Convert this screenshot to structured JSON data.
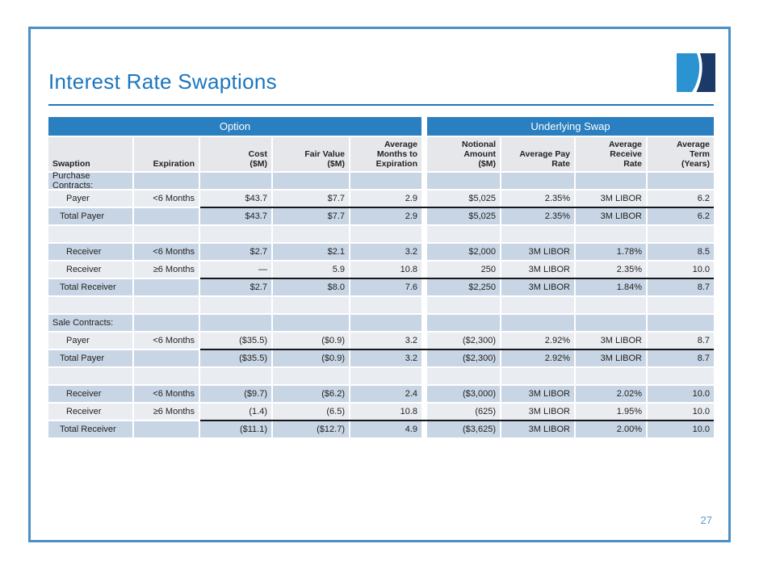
{
  "slide": {
    "title": "Interest Rate Swaptions",
    "page_number": "27"
  },
  "colors": {
    "title_blue": "#1b76bf",
    "band_blue": "#2a7fc0",
    "frame_blue": "#4a90c6",
    "row_dark": "#c8d5e4",
    "row_light": "#e9edf2",
    "header_gray": "#e5e7eb",
    "page_number_blue": "#5d9bd3",
    "logo_light_blue": "#2b93d1",
    "logo_navy": "#1c3a68"
  },
  "table": {
    "groups": [
      {
        "label": "Option"
      },
      {
        "label": "Underlying Swap"
      }
    ],
    "columns": [
      {
        "label": "Swaption"
      },
      {
        "label": "Expiration"
      },
      {
        "label": "Cost\n($M)"
      },
      {
        "label": "Fair Value\n($M)"
      },
      {
        "label": "Average\nMonths to\nExpiration"
      },
      {
        "label": "Notional\nAmount\n($M)"
      },
      {
        "label": "Average Pay\nRate"
      },
      {
        "label": "Average\nReceive\nRate"
      },
      {
        "label": "Average\nTerm\n(Years)"
      }
    ],
    "rows": [
      {
        "type": "section",
        "cells": [
          "Purchase Contracts:",
          "",
          "",
          "",
          "",
          "",
          "",
          "",
          ""
        ]
      },
      {
        "type": "data",
        "cells": [
          "Payer",
          "<6 Months",
          "$43.7",
          "$7.7",
          "2.9",
          "$5,025",
          "2.35%",
          "3M LIBOR",
          "6.2"
        ]
      },
      {
        "type": "total",
        "cells": [
          "Total Payer",
          "",
          "$43.7",
          "$7.7",
          "2.9",
          "$5,025",
          "2.35%",
          "3M LIBOR",
          "6.2"
        ]
      },
      {
        "type": "empty",
        "cells": [
          "",
          "",
          "",
          "",
          "",
          "",
          "",
          "",
          ""
        ]
      },
      {
        "type": "data",
        "cells": [
          "Receiver",
          "<6 Months",
          "$2.7",
          "$2.1",
          "3.2",
          "$2,000",
          "3M LIBOR",
          "1.78%",
          "8.5"
        ]
      },
      {
        "type": "data",
        "cells": [
          "Receiver",
          "≥6 Months",
          "—",
          "5.9",
          "10.8",
          "250",
          "3M LIBOR",
          "2.35%",
          "10.0"
        ]
      },
      {
        "type": "total",
        "cells": [
          "Total Receiver",
          "",
          "$2.7",
          "$8.0",
          "7.6",
          "$2,250",
          "3M LIBOR",
          "1.84%",
          "8.7"
        ]
      },
      {
        "type": "empty",
        "cells": [
          "",
          "",
          "",
          "",
          "",
          "",
          "",
          "",
          ""
        ]
      },
      {
        "type": "section",
        "cells": [
          "Sale Contracts:",
          "",
          "",
          "",
          "",
          "",
          "",
          "",
          ""
        ]
      },
      {
        "type": "data",
        "cells": [
          "Payer",
          "<6 Months",
          "($35.5)",
          "($0.9)",
          "3.2",
          "($2,300)",
          "2.92%",
          "3M LIBOR",
          "8.7"
        ]
      },
      {
        "type": "total",
        "cells": [
          "Total Payer",
          "",
          "($35.5)",
          "($0.9)",
          "3.2",
          "($2,300)",
          "2.92%",
          "3M LIBOR",
          "8.7"
        ]
      },
      {
        "type": "empty",
        "cells": [
          "",
          "",
          "",
          "",
          "",
          "",
          "",
          "",
          ""
        ]
      },
      {
        "type": "data",
        "cells": [
          "Receiver",
          "<6 Months",
          "($9.7)",
          "($6.2)",
          "2.4",
          "($3,000)",
          "3M LIBOR",
          "2.02%",
          "10.0"
        ]
      },
      {
        "type": "data",
        "cells": [
          "Receiver",
          "≥6 Months",
          "(1.4)",
          "(6.5)",
          "10.8",
          "(625)",
          "3M LIBOR",
          "1.95%",
          "10.0"
        ]
      },
      {
        "type": "total",
        "cells": [
          "Total Receiver",
          "",
          "($11.1)",
          "($12.7)",
          "4.9",
          "($3,625)",
          "3M LIBOR",
          "2.00%",
          "10.0"
        ]
      }
    ]
  }
}
